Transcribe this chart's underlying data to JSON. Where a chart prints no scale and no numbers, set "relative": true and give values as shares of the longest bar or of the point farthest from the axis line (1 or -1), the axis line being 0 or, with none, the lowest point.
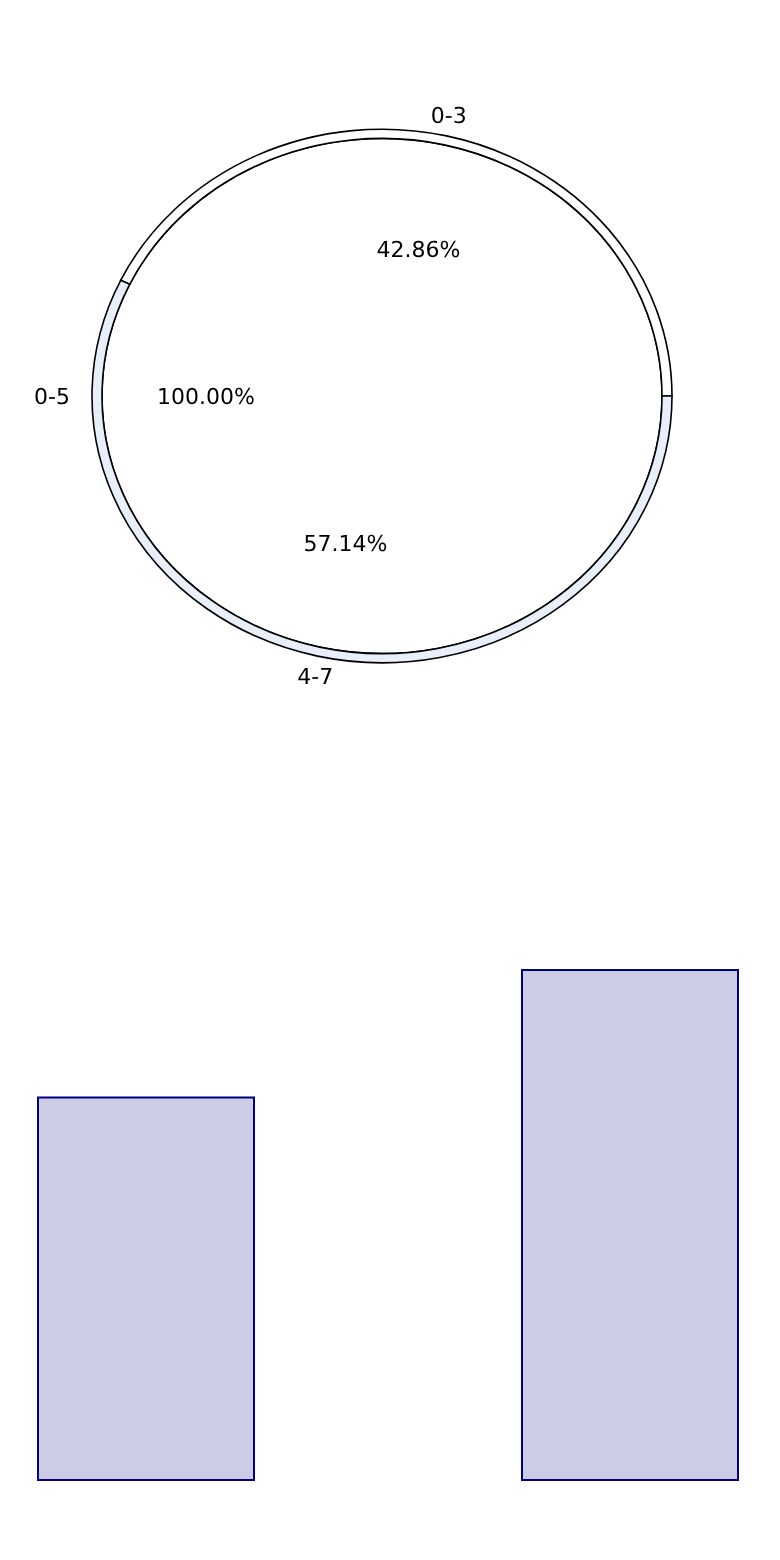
{
  "chart_data": [
    {
      "type": "donut",
      "categories": [
        "0-3",
        "4-7"
      ],
      "values": [
        42.86,
        57.14
      ],
      "value_labels": [
        "42.86%",
        "57.14%"
      ],
      "colors": [
        "#ffffff",
        "#e8eefa"
      ]
    },
    {
      "type": "pie",
      "categories": [
        "0-5"
      ],
      "values": [
        100
      ],
      "value_labels": [
        "100.00%"
      ],
      "colors": [
        "#ffffff"
      ]
    },
    {
      "type": "bar",
      "categories": [
        null,
        null
      ],
      "values": [
        0.75,
        1
      ],
      "relative": true,
      "color": "#ccccE4"
    }
  ]
}
